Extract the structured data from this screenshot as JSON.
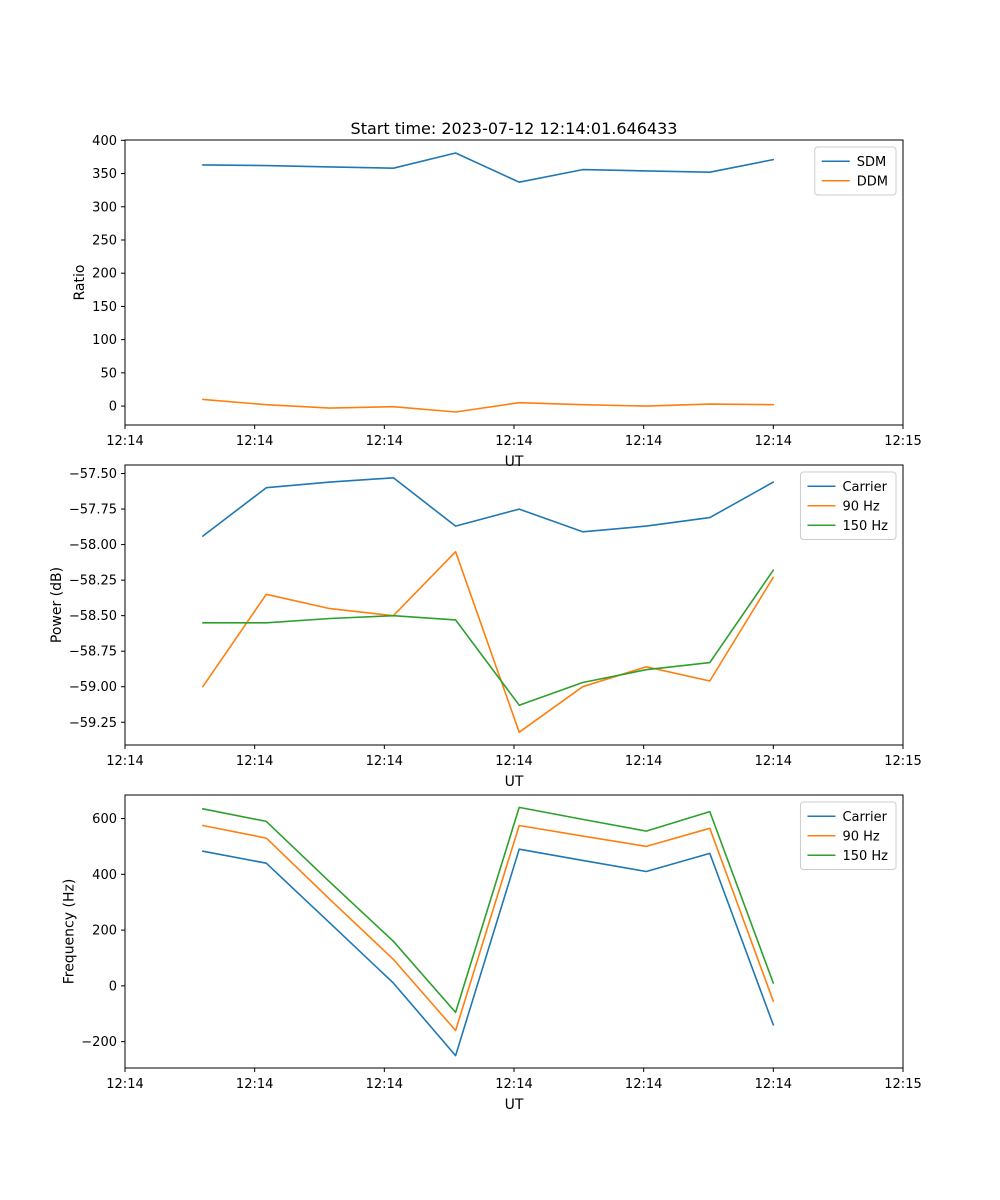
{
  "figure": {
    "title": "Start time: 2023-07-12 12:14:01.646433",
    "background": "#ffffff",
    "axis_color": "#000000"
  },
  "chart_data": [
    {
      "type": "line",
      "name": "ratio",
      "title": "Start time: 2023-07-12 12:14:01.646433",
      "xlabel": "UT",
      "ylabel": "Ratio",
      "x_unit": "seconds after 12:14:00",
      "xlim": [
        0,
        60
      ],
      "ylim": [
        -28.5,
        400.5
      ],
      "xticks": [
        0,
        10,
        20,
        30,
        40,
        50,
        60
      ],
      "xtick_labels": [
        "12:14",
        "12:14",
        "12:14",
        "12:14",
        "12:14",
        "12:14",
        "12:15"
      ],
      "yticks": [
        0,
        50,
        100,
        150,
        200,
        250,
        300,
        350,
        400
      ],
      "ytick_labels": [
        "0",
        "50",
        "100",
        "150",
        "200",
        "250",
        "300",
        "350",
        "400"
      ],
      "x": [
        6,
        10.9,
        15.8,
        20.7,
        25.5,
        30.4,
        35.3,
        40.2,
        45.1,
        50
      ],
      "series": [
        {
          "name": "SDM",
          "color": "#1f77b4",
          "values": [
            363,
            362,
            360,
            358,
            381,
            337,
            356,
            354,
            352,
            371
          ]
        },
        {
          "name": "DDM",
          "color": "#ff7f0e",
          "values": [
            10,
            2,
            -3,
            -1,
            -9,
            5,
            2,
            0,
            3,
            2
          ]
        }
      ],
      "legend": {
        "position": "upper right",
        "entries": [
          "SDM",
          "DDM"
        ]
      },
      "grid": false
    },
    {
      "type": "line",
      "name": "power",
      "title": "",
      "xlabel": "UT",
      "ylabel": "Power (dB)",
      "x_unit": "seconds after 12:14:00",
      "xlim": [
        0,
        60
      ],
      "ylim": [
        -59.41,
        -57.44
      ],
      "xticks": [
        0,
        10,
        20,
        30,
        40,
        50,
        60
      ],
      "xtick_labels": [
        "12:14",
        "12:14",
        "12:14",
        "12:14",
        "12:14",
        "12:14",
        "12:15"
      ],
      "yticks": [
        -57.5,
        -57.75,
        -58.0,
        -58.25,
        -58.5,
        -58.75,
        -59.0,
        -59.25
      ],
      "ytick_labels": [
        "−57.50",
        "−57.75",
        "−58.00",
        "−58.25",
        "−58.50",
        "−58.75",
        "−59.00",
        "−59.25"
      ],
      "x": [
        6,
        10.9,
        15.8,
        20.7,
        25.5,
        30.4,
        35.3,
        40.2,
        45.1,
        50
      ],
      "series": [
        {
          "name": "Carrier",
          "color": "#1f77b4",
          "values": [
            -57.94,
            -57.6,
            -57.56,
            -57.53,
            -57.87,
            -57.75,
            -57.91,
            -57.87,
            -57.81,
            -57.56
          ]
        },
        {
          "name": "90 Hz",
          "color": "#ff7f0e",
          "values": [
            -59.0,
            -58.35,
            -58.45,
            -58.5,
            -58.05,
            -59.32,
            -59.0,
            -58.86,
            -58.96,
            -58.23
          ]
        },
        {
          "name": "150 Hz",
          "color": "#2ca02c",
          "values": [
            -58.55,
            -58.55,
            -58.52,
            -58.5,
            -58.53,
            -59.13,
            -58.97,
            -58.88,
            -58.83,
            -58.18
          ]
        }
      ],
      "legend": {
        "position": "upper right",
        "entries": [
          "Carrier",
          "90 Hz",
          "150 Hz"
        ]
      },
      "grid": false
    },
    {
      "type": "line",
      "name": "frequency",
      "title": "",
      "xlabel": "UT",
      "ylabel": "Frequency (Hz)",
      "x_unit": "seconds after 12:14:00",
      "xlim": [
        0,
        60
      ],
      "ylim": [
        -294.5,
        684.5
      ],
      "xticks": [
        0,
        10,
        20,
        30,
        40,
        50,
        60
      ],
      "xtick_labels": [
        "12:14",
        "12:14",
        "12:14",
        "12:14",
        "12:14",
        "12:14",
        "12:15"
      ],
      "yticks": [
        -200,
        0,
        200,
        400,
        600
      ],
      "ytick_labels": [
        "−200",
        "0",
        "200",
        "400",
        "600"
      ],
      "x": [
        6,
        10.9,
        15.8,
        20.7,
        25.5,
        30.4,
        35.3,
        40.2,
        45.1,
        50
      ],
      "series": [
        {
          "name": "Carrier",
          "color": "#1f77b4",
          "values": [
            483,
            440,
            225,
            10,
            -250,
            490,
            450,
            410,
            475,
            -140
          ]
        },
        {
          "name": "90 Hz",
          "color": "#ff7f0e",
          "values": [
            575,
            530,
            310,
            95,
            -160,
            575,
            537,
            500,
            565,
            -55
          ]
        },
        {
          "name": "150 Hz",
          "color": "#2ca02c",
          "values": [
            635,
            590,
            372,
            160,
            -95,
            640,
            597,
            555,
            625,
            10
          ]
        }
      ],
      "legend": {
        "position": "upper right",
        "entries": [
          "Carrier",
          "90 Hz",
          "150 Hz"
        ]
      },
      "grid": false
    }
  ]
}
